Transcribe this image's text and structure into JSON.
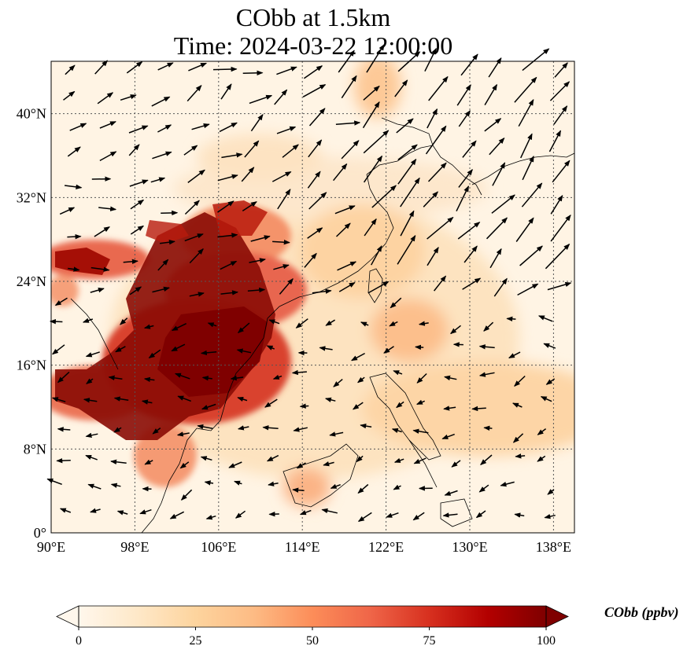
{
  "title": {
    "line1": "CObb at 1.5km",
    "line2": "Time: 2024-03-22 12:00:00"
  },
  "map": {
    "lon_range": [
      90,
      140
    ],
    "lat_range": [
      0,
      45
    ],
    "x_ticks": [
      "90°E",
      "98°E",
      "106°E",
      "114°E",
      "122°E",
      "130°E",
      "138°E"
    ],
    "y_ticks": [
      "0°",
      "8°N",
      "16°N",
      "24°N",
      "32°N",
      "40°N"
    ],
    "gridlines": true,
    "variable": "CObb",
    "level": "1.5km",
    "wind_vectors_shown": true
  },
  "colorbar": {
    "label": "CObb (ppbv)",
    "ticks": [
      "0",
      "25",
      "50",
      "75",
      "100"
    ],
    "range": [
      0,
      100
    ],
    "extend": "both",
    "colormap": [
      "#fff7ec",
      "#fee8c8",
      "#fdd49e",
      "#fdbb84",
      "#fc8d59",
      "#ef6548",
      "#d7301f",
      "#b30000",
      "#7f0000"
    ]
  }
}
